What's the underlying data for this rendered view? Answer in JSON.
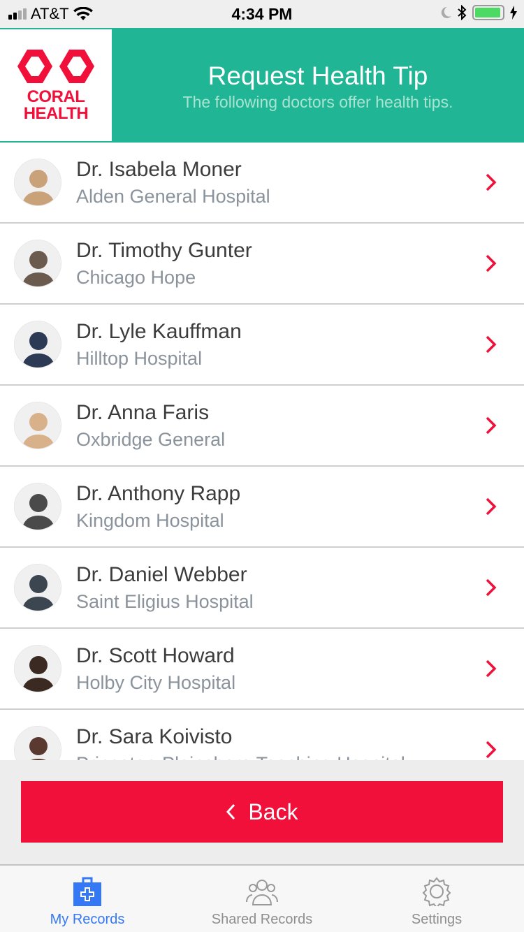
{
  "status_bar": {
    "carrier": "AT&T",
    "time": "4:34 PM",
    "battery_level": 0.95
  },
  "header": {
    "logo_text": [
      "CORAL",
      "HEALTH"
    ],
    "title": "Request Health Tip",
    "subtitle": "The following doctors offer health tips."
  },
  "doctors": [
    {
      "name": "Dr. Isabela Moner",
      "hospital": "Alden General Hospital",
      "avatar_color": "#c9a27a"
    },
    {
      "name": "Dr. Timothy Gunter",
      "hospital": "Chicago Hope",
      "avatar_color": "#6b5b4e"
    },
    {
      "name": "Dr. Lyle Kauffman",
      "hospital": "Hilltop Hospital",
      "avatar_color": "#2d3a55"
    },
    {
      "name": "Dr. Anna Faris",
      "hospital": "Oxbridge General",
      "avatar_color": "#d8b08a"
    },
    {
      "name": "Dr. Anthony Rapp",
      "hospital": "Kingdom Hospital",
      "avatar_color": "#4a4a4a"
    },
    {
      "name": "Dr. Daniel Webber",
      "hospital": "Saint Eligius Hospital",
      "avatar_color": "#3c4650"
    },
    {
      "name": "Dr. Scott Howard",
      "hospital": "Holby City Hospital",
      "avatar_color": "#3a2a22"
    },
    {
      "name": "Dr. Sara Koivisto",
      "hospital": "Princeton-Plainsboro Teaching Hospital",
      "avatar_color": "#5a3a30"
    }
  ],
  "back_button": {
    "label": "Back"
  },
  "tabs": [
    {
      "label": "My Records",
      "active": true
    },
    {
      "label": "Shared Records",
      "active": false
    },
    {
      "label": "Settings",
      "active": false
    }
  ],
  "colors": {
    "brand_teal": "#1fb595",
    "accent_red": "#f0103a",
    "active_tab": "#3478f6"
  }
}
